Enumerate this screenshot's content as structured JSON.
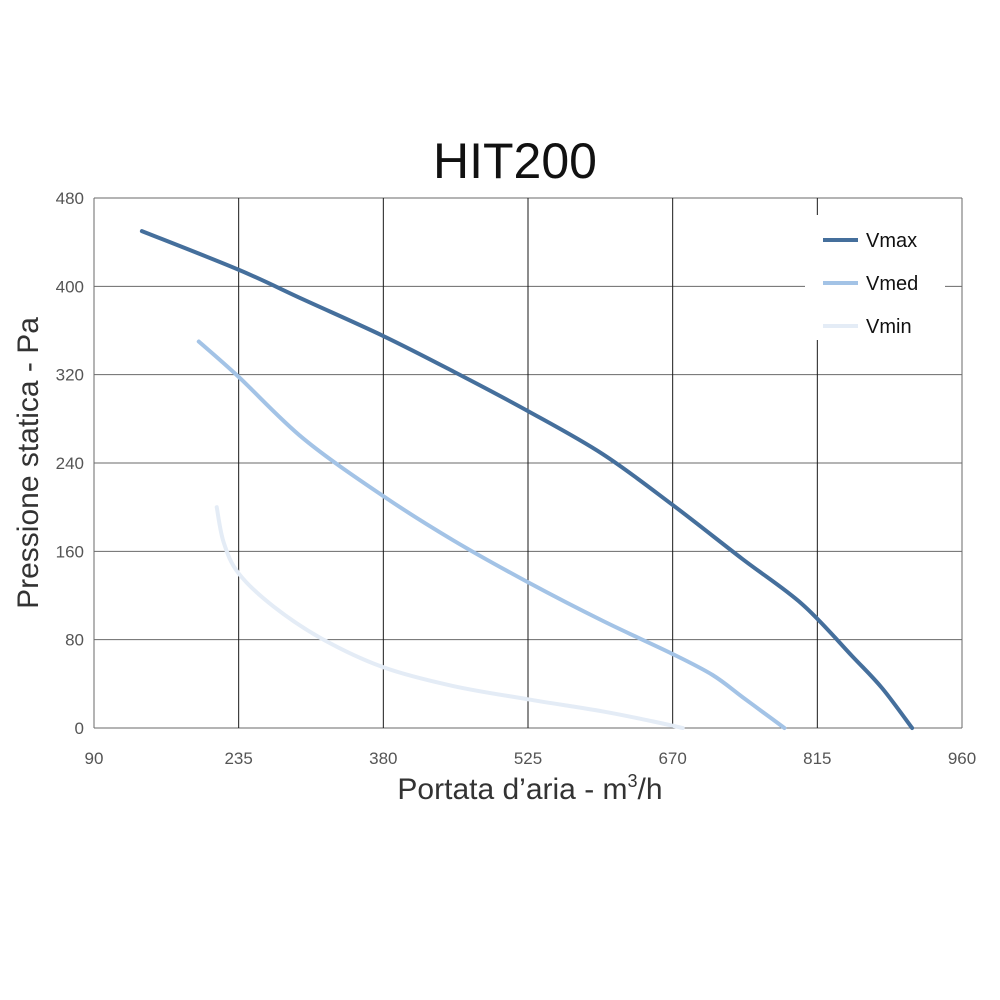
{
  "chart_data": {
    "type": "line",
    "title": "HIT200",
    "xlabel": "Portata d’aria - m",
    "xlabel_sup": "3",
    "xlabel_suffix": "/h",
    "ylabel": "Pressione statica - Pa",
    "xlim": [
      90,
      960
    ],
    "ylim": [
      0,
      480
    ],
    "x_ticks": [
      90,
      235,
      380,
      525,
      670,
      815,
      960
    ],
    "y_ticks": [
      0,
      80,
      160,
      240,
      320,
      400,
      480
    ],
    "grid": true,
    "legend_position": "top-right",
    "series": [
      {
        "name": "Vmax",
        "color": "#456f9c",
        "points": [
          [
            138,
            450
          ],
          [
            235,
            415
          ],
          [
            300,
            388
          ],
          [
            380,
            355
          ],
          [
            450,
            323
          ],
          [
            525,
            287
          ],
          [
            600,
            248
          ],
          [
            670,
            202
          ],
          [
            740,
            153
          ],
          [
            800,
            112
          ],
          [
            850,
            65
          ],
          [
            880,
            36
          ],
          [
            910,
            0
          ]
        ]
      },
      {
        "name": "Vmed",
        "color": "#a3c3e6",
        "points": [
          [
            195,
            350
          ],
          [
            235,
            318
          ],
          [
            300,
            262
          ],
          [
            380,
            210
          ],
          [
            450,
            170
          ],
          [
            525,
            132
          ],
          [
            600,
            97
          ],
          [
            670,
            67
          ],
          [
            710,
            48
          ],
          [
            740,
            28
          ],
          [
            770,
            8
          ],
          [
            782,
            0
          ]
        ]
      },
      {
        "name": "Vmin",
        "color": "#e4ecf6",
        "points": [
          [
            213,
            200
          ],
          [
            220,
            168
          ],
          [
            235,
            140
          ],
          [
            270,
            110
          ],
          [
            320,
            80
          ],
          [
            380,
            55
          ],
          [
            450,
            38
          ],
          [
            525,
            26
          ],
          [
            600,
            15
          ],
          [
            650,
            6
          ],
          [
            680,
            0
          ]
        ]
      }
    ]
  }
}
